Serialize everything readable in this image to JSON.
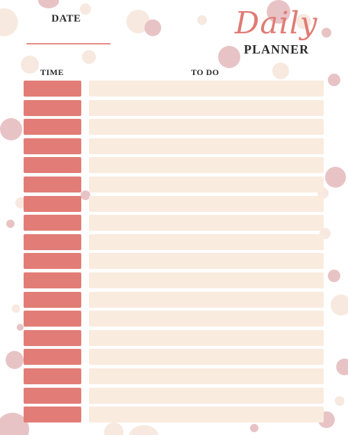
{
  "header": {
    "date_label": "DATE",
    "title_script": "Daily",
    "title_planner": "PLANNER"
  },
  "table": {
    "time_header": "TIME",
    "todo_header": "TO DO",
    "row_count": 18
  },
  "colors": {
    "accent": "#e17d76",
    "row_fill": "#faebdf",
    "bubble_pink": "#e8c3c6",
    "bubble_cream": "#f7e9df"
  }
}
